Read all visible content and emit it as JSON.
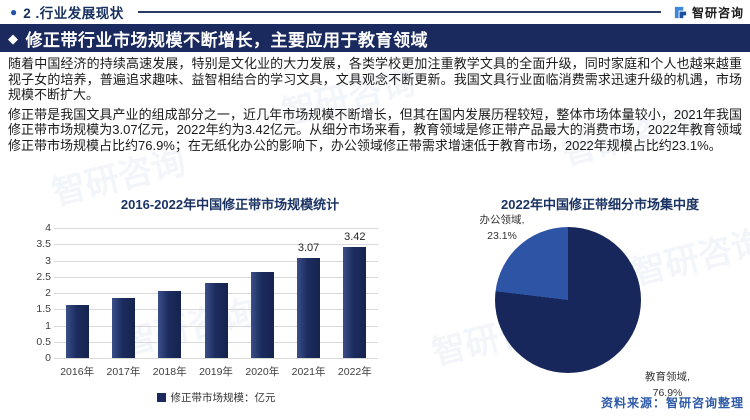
{
  "header": {
    "bullet": "●",
    "section_title": "2 .行业发展现状",
    "brand_name": "智研咨询"
  },
  "banner": {
    "bullet": "◆",
    "title": "修正带行业市场规模不断增长，主要应用于教育领域"
  },
  "paragraphs": [
    "随着中国经济的持续高速发展，特别是文化业的大力发展，各类学校更加注重教学文具的全面升级，同时家庭和个人也越来越重视子女的培养，普遍追求趣味、益智相结合的学习文具，文具观念不断更新。我国文具行业面临消费需求迅速升级的机遇，市场规模不断扩大。",
    "修正带是我国文具产业的组成部分之一，近几年市场规模不断增长，但其在国内发展历程较短，整体市场体量较小，2021年我国修正带市场规模为3.07亿元，2022年约为3.42亿元。从细分市场来看，教育领域是修正带产品最大的消费市场，2022年教育领域修正带市场规模占比约76.9%；在无纸化办公的影响下，办公领域修正带需求增速低于教育市场，2022年规模占比约23.1%。"
  ],
  "chart_data": [
    {
      "type": "bar",
      "title": "2016-2022年中国修正带市场规模统计",
      "categories": [
        "2016年",
        "2017年",
        "2018年",
        "2019年",
        "2020年",
        "2021年",
        "2022年"
      ],
      "values": [
        1.63,
        1.85,
        2.06,
        2.3,
        2.66,
        3.07,
        3.42
      ],
      "data_labels": [
        "",
        "",
        "",
        "",
        "",
        "3.07",
        "3.42"
      ],
      "legend": "修正带市场规模：亿元",
      "xlabel": "",
      "ylabel": "",
      "ylim": [
        0,
        4
      ],
      "ytick_step": 0.5,
      "grid": true,
      "legend_position": "bottom",
      "bar_color": "#1b2a5e"
    },
    {
      "type": "pie",
      "title": "2022年中国修正带细分市场集中度",
      "slices": [
        {
          "label": "教育领域",
          "value": 76.9,
          "label_line": "教育领域,",
          "value_line": "76.9%",
          "color": "#17265b"
        },
        {
          "label": "办公领域",
          "value": 23.1,
          "label_line": "办公领域,",
          "value_line": "23.1%",
          "color": "#2e55a5"
        }
      ],
      "start_angle_deg": 0,
      "direction": "clockwise"
    }
  ],
  "source_note": "资料来源：智研咨询整理",
  "watermark": "智研咨询",
  "colors": {
    "banner_bg": "#1b2a5e",
    "chart_title_text": "#1c3464",
    "source_text": "#2f5ba8",
    "grid_line": "#d9d9d9",
    "bar_fill": "#1b2a5e",
    "pie_education": "#17265b",
    "pie_office": "#2e55a5"
  }
}
